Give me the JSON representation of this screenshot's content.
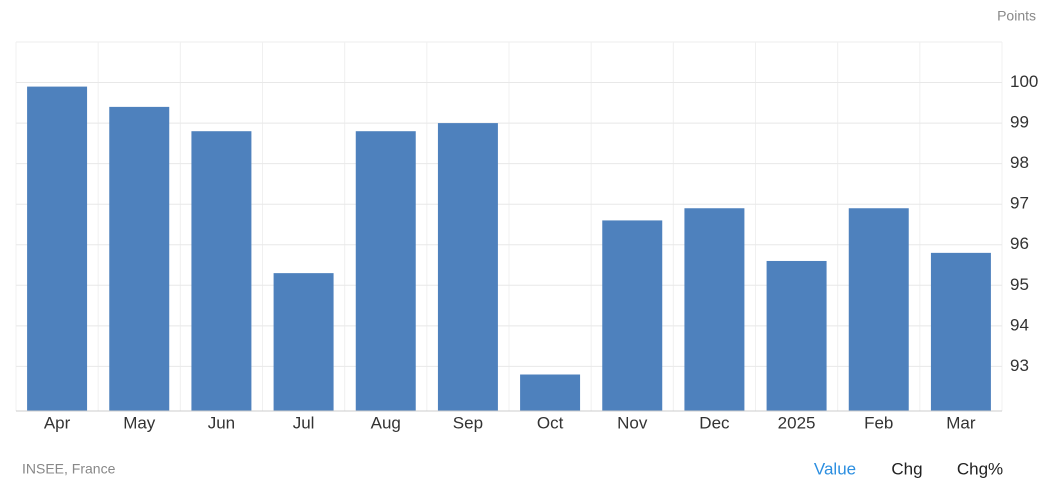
{
  "chart_data": {
    "type": "bar",
    "unit_label": "Points",
    "categories": [
      "Apr",
      "May",
      "Jun",
      "Jul",
      "Aug",
      "Sep",
      "Oct",
      "Nov",
      "Dec",
      "2025",
      "Feb",
      "Mar"
    ],
    "values": [
      99.9,
      99.4,
      98.8,
      95.3,
      98.8,
      99.0,
      92.8,
      96.6,
      96.9,
      95.6,
      96.9,
      95.8
    ],
    "color": "#4e81bd",
    "ylim": [
      91.9,
      101
    ],
    "yticks": [
      93,
      94,
      95,
      96,
      97,
      98,
      99,
      100
    ],
    "grid": true
  },
  "source": "INSEE, France",
  "tabs": [
    "Value",
    "Chg",
    "Chg%"
  ]
}
